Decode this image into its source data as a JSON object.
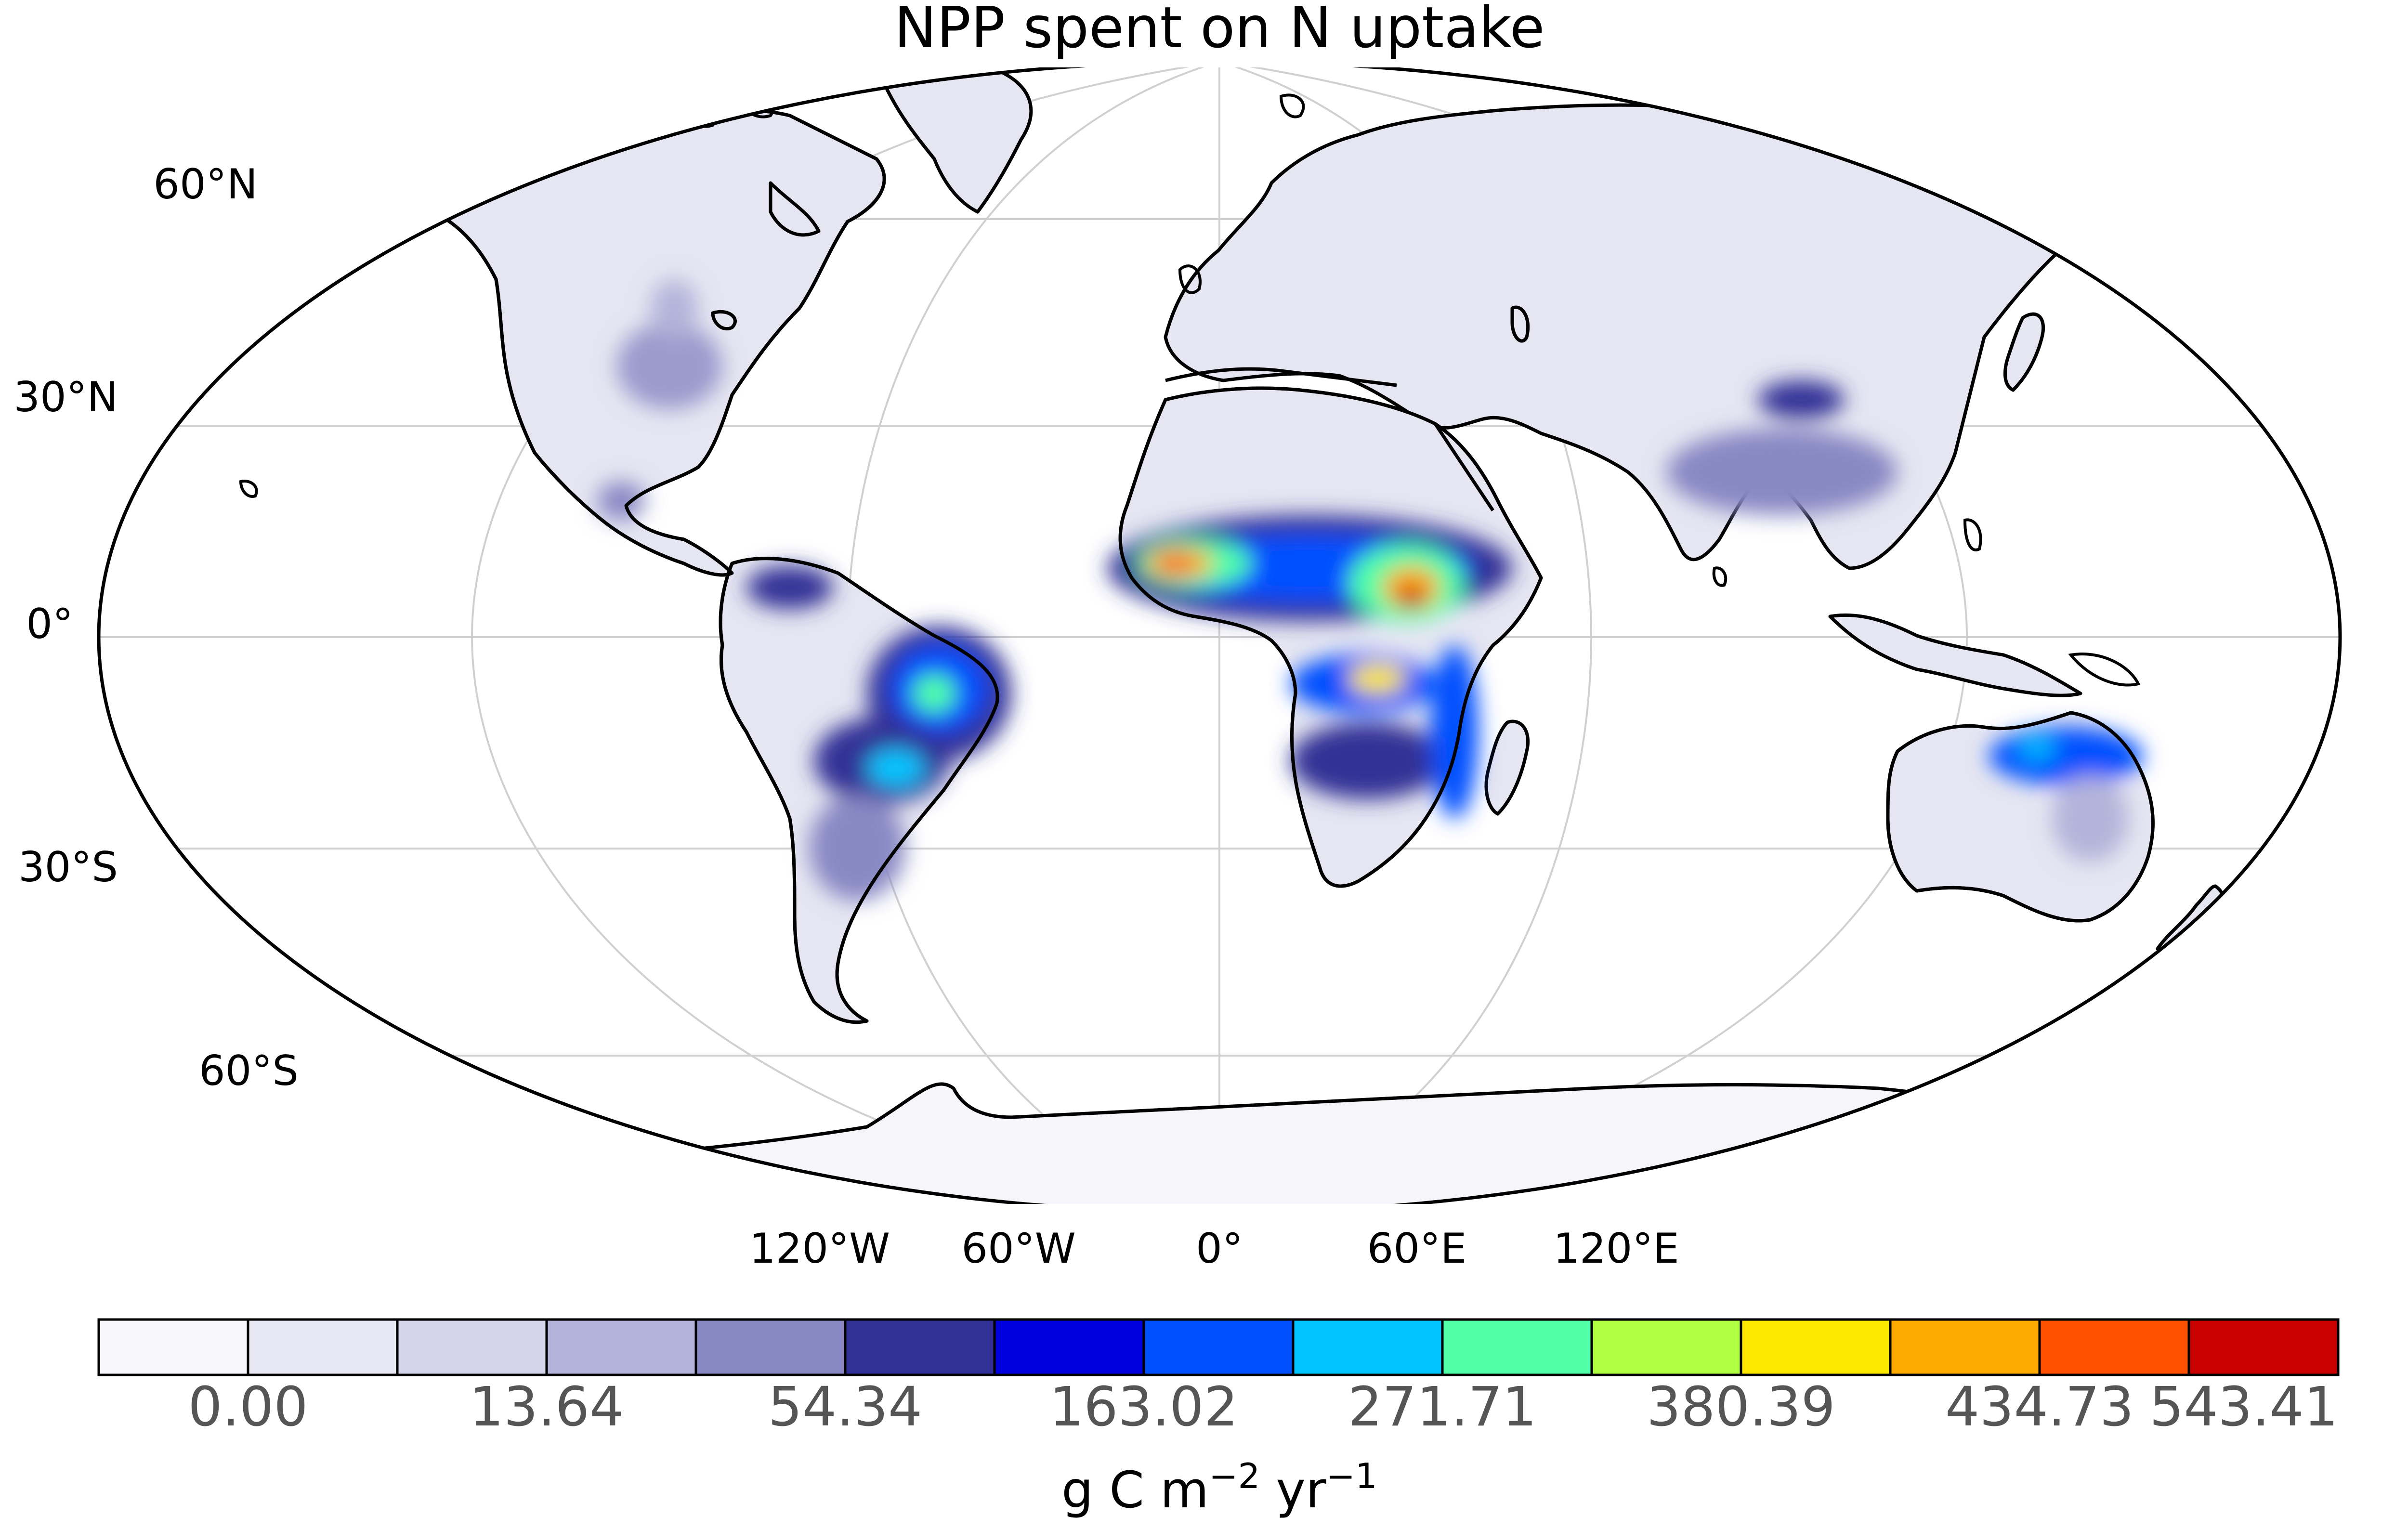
{
  "title": "NPP spent on N uptake",
  "map": {
    "projection": "Robinson",
    "lat_labels": [
      "60°N",
      "30°N",
      "0°",
      "30°S",
      "60°S"
    ],
    "lon_labels": [
      "120°W",
      "60°W",
      "0°",
      "60°E",
      "120°E"
    ]
  },
  "colorbar": {
    "unit_main": "g C m",
    "unit_exp1": "−2",
    "unit_mid": " yr",
    "unit_exp2": "−1",
    "tick_labels": [
      "0.00",
      "13.64",
      "54.34",
      "163.02",
      "271.71",
      "380.39",
      "434.73",
      "543.41"
    ],
    "colors": [
      "#f8f8fc",
      "#e8e8f4",
      "#d4d4ea",
      "#b4b4da",
      "#8888c4",
      "#303096",
      "#0000dc",
      "#0050ff",
      "#00c4ff",
      "#50ffa8",
      "#b0ff40",
      "#ffe800",
      "#ffaa00",
      "#ff5000",
      "#c80000"
    ]
  },
  "colors": {
    "land_base": "#e6e6f2",
    "coast": "#000000",
    "grid": "#d0d0d0",
    "antarctica": "#f6f6fa"
  }
}
